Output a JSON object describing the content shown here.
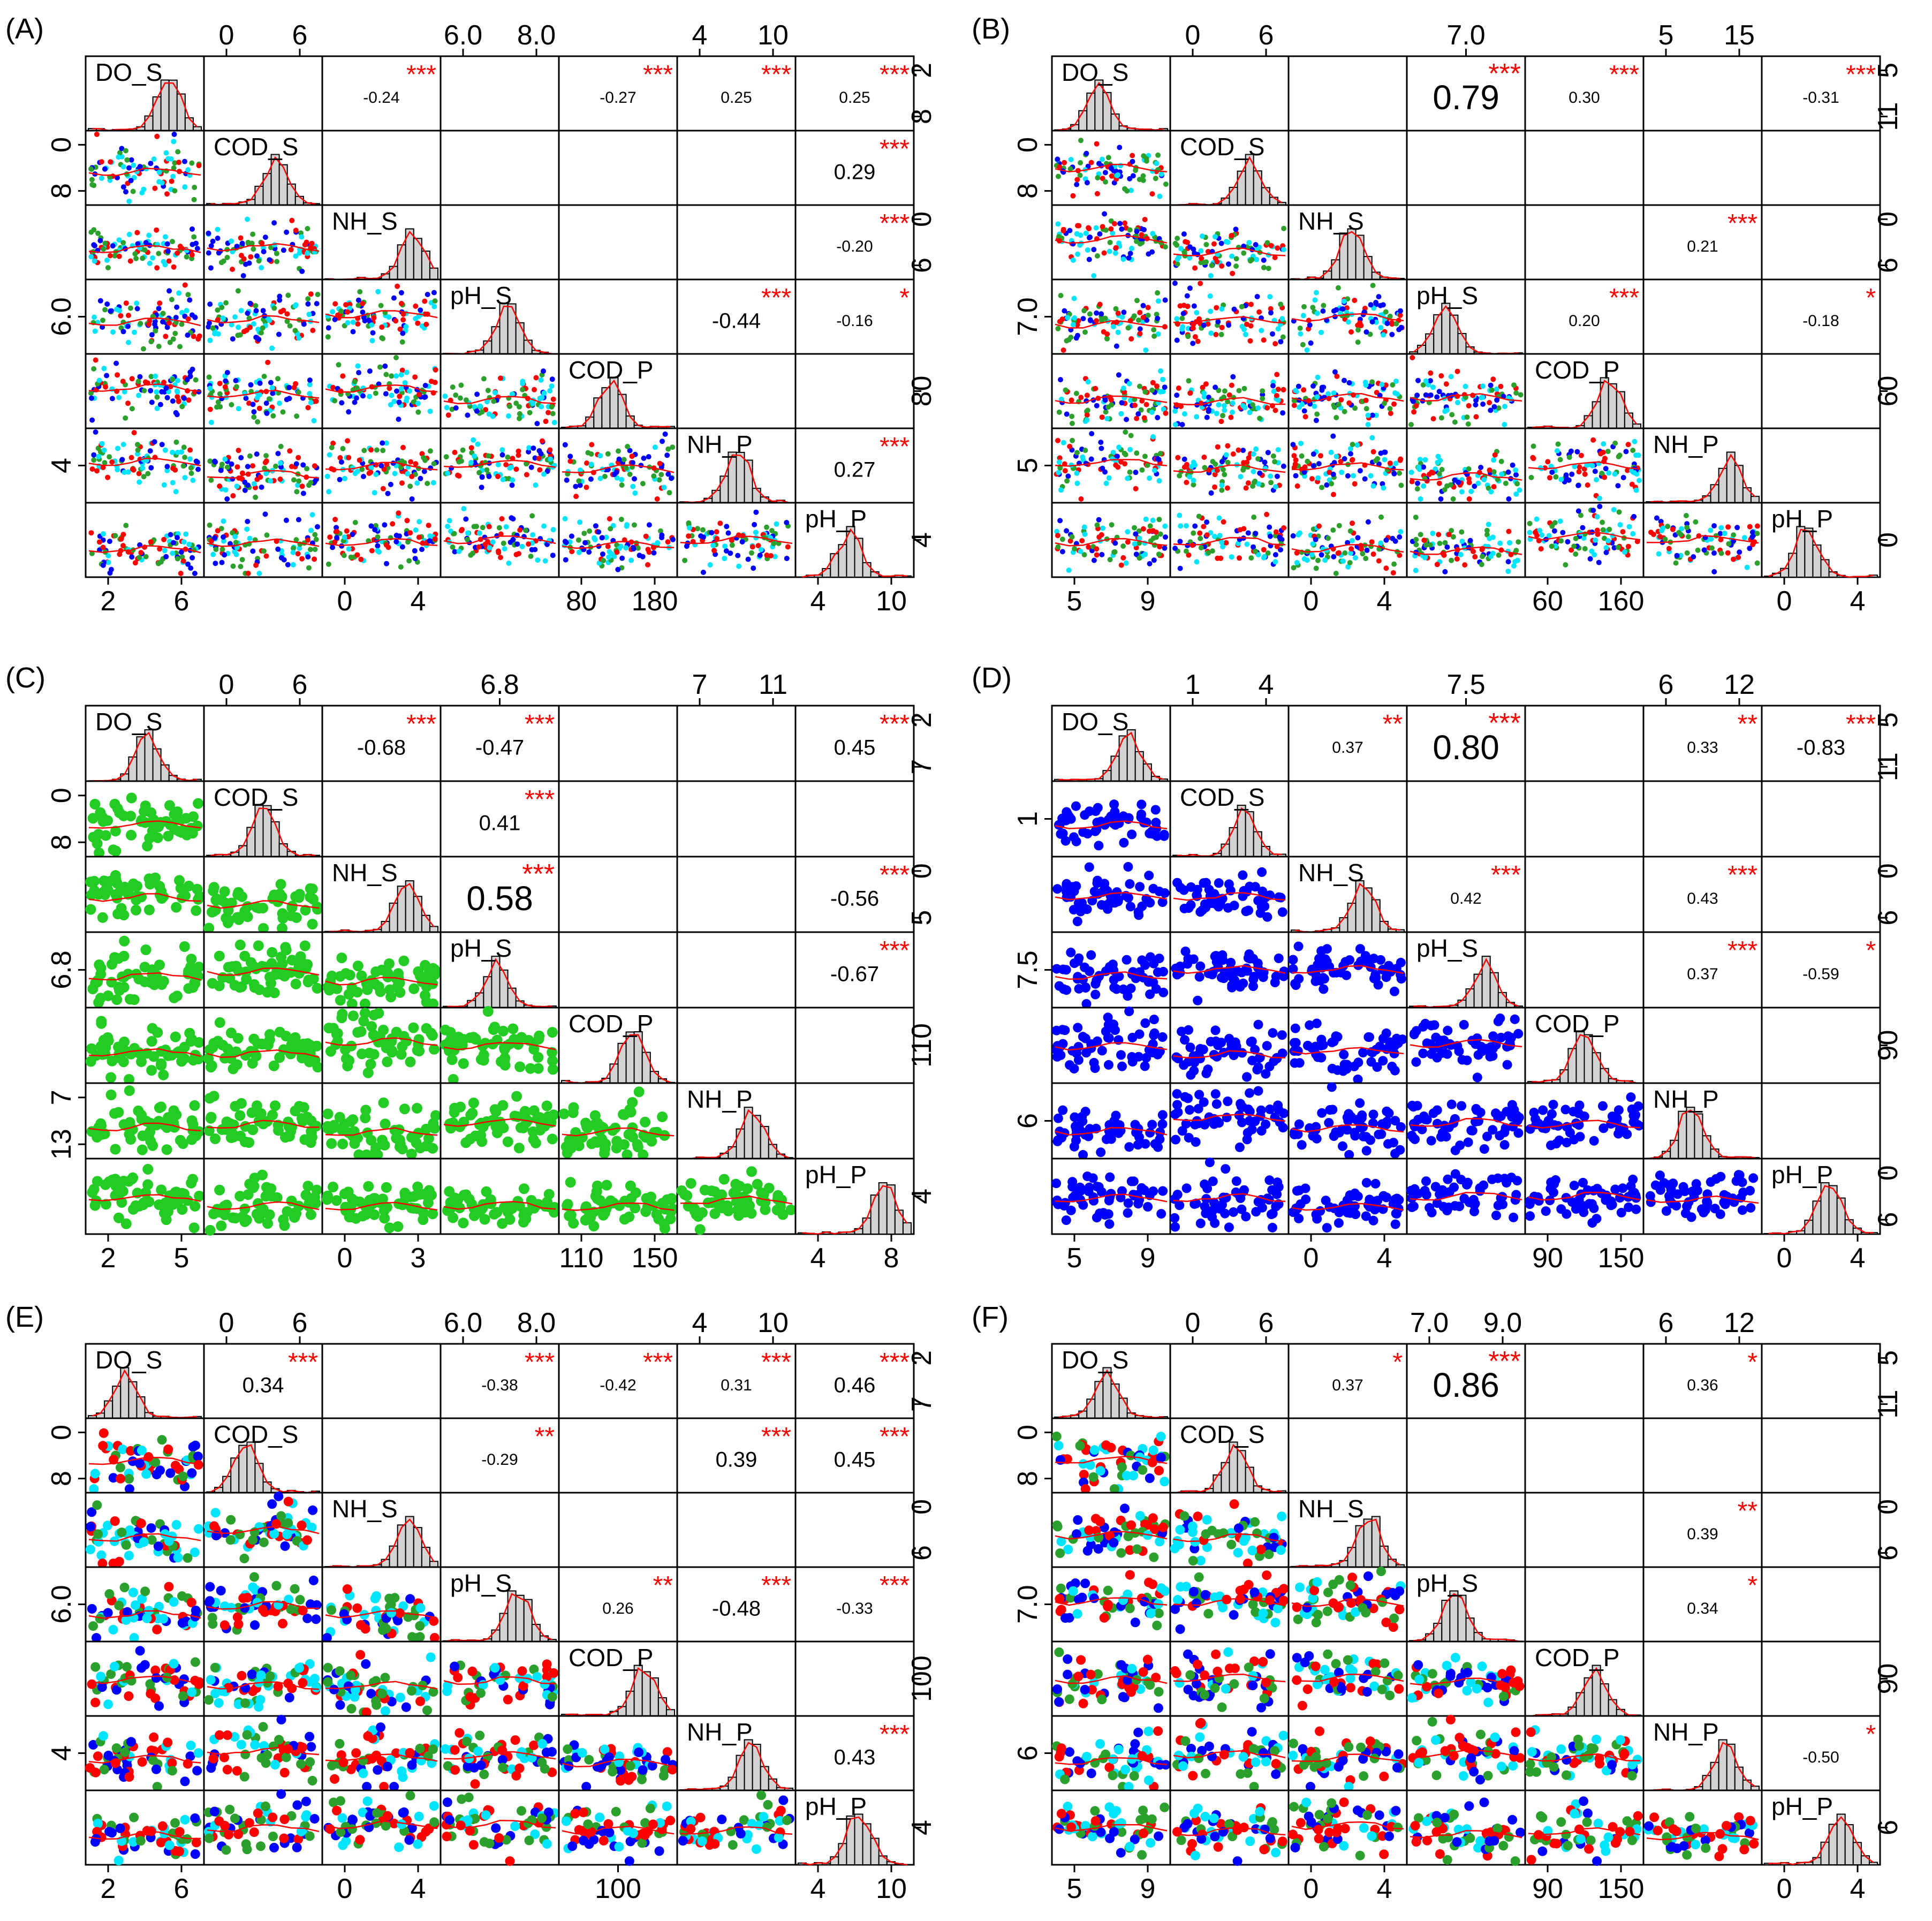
{
  "chart_data": [
    {
      "type": "scatter-matrix",
      "panel_label": "(A)",
      "variables": [
        "DO_S",
        "COD_S",
        "NH_S",
        "pH_S",
        "COD_P",
        "NH_P",
        "pH_P"
      ],
      "point_colors": [
        "#2ca02c",
        "#ff0000",
        "#0000ff",
        "#00e5ff"
      ],
      "top_ticks": [
        [],
        [
          "0",
          "6"
        ],
        [],
        [
          "6.0",
          "8.0"
        ],
        [],
        [
          "4",
          "10"
        ],
        []
      ],
      "bottom_ticks": [
        [
          "2",
          "6"
        ],
        [],
        [
          "0",
          "4"
        ],
        [],
        [
          "80",
          "180"
        ],
        [],
        [
          "4",
          "10"
        ]
      ],
      "left_ticks": [
        [],
        [
          "0",
          "8"
        ],
        [],
        [
          "6.0"
        ],
        [],
        [
          "4"
        ],
        []
      ],
      "right_ticks": [
        [
          "2",
          "8"
        ],
        [],
        [
          "0",
          "6"
        ],
        [],
        [
          "80"
        ],
        [],
        [
          "4"
        ]
      ],
      "correlations": [
        {
          "row": 0,
          "col": 2,
          "value": "-0.24",
          "stars": "***",
          "size": "small"
        },
        {
          "row": 0,
          "col": 4,
          "value": "-0.27",
          "stars": "***",
          "size": "small"
        },
        {
          "row": 0,
          "col": 5,
          "value": "0.25",
          "stars": "***",
          "size": "small"
        },
        {
          "row": 0,
          "col": 6,
          "value": "0.25",
          "stars": "***",
          "size": "small"
        },
        {
          "row": 1,
          "col": 6,
          "value": "0.29",
          "stars": "***",
          "size": "medium"
        },
        {
          "row": 2,
          "col": 6,
          "value": "-0.20",
          "stars": "***",
          "size": "small"
        },
        {
          "row": 3,
          "col": 5,
          "value": "-0.44",
          "stars": "***",
          "size": "medium"
        },
        {
          "row": 3,
          "col": 6,
          "value": "-0.16",
          "stars": "*",
          "size": "small"
        },
        {
          "row": 5,
          "col": 6,
          "value": "0.27",
          "stars": "***",
          "size": "medium"
        }
      ]
    },
    {
      "type": "scatter-matrix",
      "panel_label": "(B)",
      "variables": [
        "DO_S",
        "COD_S",
        "NH_S",
        "pH_S",
        "COD_P",
        "NH_P",
        "pH_P"
      ],
      "point_colors": [
        "#2ca02c",
        "#ff0000",
        "#0000ff",
        "#00e5ff"
      ],
      "top_ticks": [
        [],
        [
          "0",
          "6"
        ],
        [],
        [
          "7.0"
        ],
        [],
        [
          "5",
          "15"
        ],
        []
      ],
      "bottom_ticks": [
        [
          "5",
          "9"
        ],
        [],
        [
          "0",
          "4"
        ],
        [],
        [
          "60",
          "160"
        ],
        [],
        [
          "0",
          "4"
        ]
      ],
      "left_ticks": [
        [],
        [
          "0",
          "8"
        ],
        [],
        [
          "7.0"
        ],
        [],
        [
          "5"
        ],
        []
      ],
      "right_ticks": [
        [
          "5",
          "11"
        ],
        [],
        [
          "0",
          "6"
        ],
        [],
        [
          "60"
        ],
        [],
        [
          "0"
        ]
      ],
      "correlations": [
        {
          "row": 0,
          "col": 3,
          "value": "0.79",
          "stars": "***",
          "size": "large"
        },
        {
          "row": 0,
          "col": 4,
          "value": "0.30",
          "stars": "***",
          "size": "small"
        },
        {
          "row": 0,
          "col": 6,
          "value": "-0.31",
          "stars": "***",
          "size": "small"
        },
        {
          "row": 2,
          "col": 5,
          "value": "0.21",
          "stars": "***",
          "size": "small"
        },
        {
          "row": 3,
          "col": 4,
          "value": "0.20",
          "stars": "***",
          "size": "small"
        },
        {
          "row": 3,
          "col": 6,
          "value": "-0.18",
          "stars": "*",
          "size": "small"
        }
      ]
    },
    {
      "type": "scatter-matrix",
      "panel_label": "(C)",
      "variables": [
        "DO_S",
        "COD_S",
        "NH_S",
        "pH_S",
        "COD_P",
        "NH_P",
        "pH_P"
      ],
      "point_colors": [
        "#22cc22"
      ],
      "top_ticks": [
        [],
        [
          "0",
          "6"
        ],
        [],
        [
          "6.8"
        ],
        [],
        [
          "7",
          "11"
        ],
        []
      ],
      "bottom_ticks": [
        [
          "2",
          "5"
        ],
        [],
        [
          "0",
          "3"
        ],
        [],
        [
          "110",
          "150"
        ],
        [],
        [
          "4",
          "8"
        ]
      ],
      "left_ticks": [
        [],
        [
          "0",
          "8"
        ],
        [],
        [
          "6.8"
        ],
        [],
        [
          "7",
          "13"
        ],
        []
      ],
      "right_ticks": [
        [
          "2",
          "7"
        ],
        [],
        [
          "0",
          "5"
        ],
        [],
        [
          "110"
        ],
        [],
        [
          "4"
        ]
      ],
      "correlations": [
        {
          "row": 0,
          "col": 2,
          "value": "-0.68",
          "stars": "***",
          "size": "medium"
        },
        {
          "row": 0,
          "col": 3,
          "value": "-0.47",
          "stars": "***",
          "size": "medium"
        },
        {
          "row": 0,
          "col": 6,
          "value": "0.45",
          "stars": "***",
          "size": "medium"
        },
        {
          "row": 1,
          "col": 3,
          "value": "0.41",
          "stars": "***",
          "size": "medium"
        },
        {
          "row": 2,
          "col": 3,
          "value": "0.58",
          "stars": "***",
          "size": "large"
        },
        {
          "row": 2,
          "col": 6,
          "value": "-0.56",
          "stars": "***",
          "size": "medium"
        },
        {
          "row": 3,
          "col": 6,
          "value": "-0.67",
          "stars": "***",
          "size": "medium"
        }
      ]
    },
    {
      "type": "scatter-matrix",
      "panel_label": "(D)",
      "variables": [
        "DO_S",
        "COD_S",
        "NH_S",
        "pH_S",
        "COD_P",
        "NH_P",
        "pH_P"
      ],
      "point_colors": [
        "#0000ff"
      ],
      "top_ticks": [
        [],
        [
          "1",
          "4"
        ],
        [],
        [
          "7.5"
        ],
        [],
        [
          "6",
          "12"
        ],
        []
      ],
      "bottom_ticks": [
        [
          "5",
          "9"
        ],
        [],
        [
          "0",
          "4"
        ],
        [],
        [
          "90",
          "150"
        ],
        [],
        [
          "0",
          "4"
        ]
      ],
      "left_ticks": [
        [],
        [
          "1"
        ],
        [],
        [
          "7.5"
        ],
        [],
        [
          "6"
        ],
        []
      ],
      "right_ticks": [
        [
          "5",
          "11"
        ],
        [],
        [
          "0",
          "6"
        ],
        [],
        [
          "90"
        ],
        [],
        [
          "0",
          "6"
        ]
      ],
      "correlations": [
        {
          "row": 0,
          "col": 2,
          "value": "0.37",
          "stars": "**",
          "size": "small"
        },
        {
          "row": 0,
          "col": 3,
          "value": "0.80",
          "stars": "***",
          "size": "large"
        },
        {
          "row": 0,
          "col": 5,
          "value": "0.33",
          "stars": "**",
          "size": "small"
        },
        {
          "row": 0,
          "col": 6,
          "value": "-0.83",
          "stars": "***",
          "size": "medium"
        },
        {
          "row": 2,
          "col": 3,
          "value": "0.42",
          "stars": "***",
          "size": "small"
        },
        {
          "row": 2,
          "col": 5,
          "value": "0.43",
          "stars": "***",
          "size": "small"
        },
        {
          "row": 3,
          "col": 5,
          "value": "0.37",
          "stars": "***",
          "size": "small"
        },
        {
          "row": 3,
          "col": 6,
          "value": "-0.59",
          "stars": "*",
          "size": "small"
        }
      ]
    },
    {
      "type": "scatter-matrix",
      "panel_label": "(E)",
      "variables": [
        "DO_S",
        "COD_S",
        "NH_S",
        "pH_S",
        "COD_P",
        "NH_P",
        "pH_P"
      ],
      "point_colors": [
        "#2ca02c",
        "#ff0000",
        "#0000ff",
        "#00e5ff"
      ],
      "top_ticks": [
        [],
        [
          "0",
          "6"
        ],
        [],
        [
          "6.0",
          "8.0"
        ],
        [],
        [
          "4",
          "10"
        ],
        []
      ],
      "bottom_ticks": [
        [
          "2",
          "6"
        ],
        [],
        [
          "0",
          "4"
        ],
        [],
        [
          "100"
        ],
        [],
        [
          "4",
          "10"
        ]
      ],
      "left_ticks": [
        [],
        [
          "0",
          "8"
        ],
        [],
        [
          "6.0"
        ],
        [],
        [
          "4"
        ],
        []
      ],
      "right_ticks": [
        [
          "2",
          "7"
        ],
        [],
        [
          "0",
          "6"
        ],
        [],
        [
          "100"
        ],
        [],
        [
          "4"
        ]
      ],
      "correlations": [
        {
          "row": 0,
          "col": 1,
          "value": "0.34",
          "stars": "***",
          "size": "medium"
        },
        {
          "row": 0,
          "col": 3,
          "value": "-0.38",
          "stars": "***",
          "size": "small"
        },
        {
          "row": 0,
          "col": 4,
          "value": "-0.42",
          "stars": "***",
          "size": "small"
        },
        {
          "row": 0,
          "col": 5,
          "value": "0.31",
          "stars": "***",
          "size": "small"
        },
        {
          "row": 0,
          "col": 6,
          "value": "0.46",
          "stars": "***",
          "size": "medium"
        },
        {
          "row": 1,
          "col": 3,
          "value": "-0.29",
          "stars": "**",
          "size": "small"
        },
        {
          "row": 1,
          "col": 5,
          "value": "0.39",
          "stars": "***",
          "size": "medium"
        },
        {
          "row": 1,
          "col": 6,
          "value": "0.45",
          "stars": "***",
          "size": "medium"
        },
        {
          "row": 3,
          "col": 4,
          "value": "0.26",
          "stars": "**",
          "size": "small"
        },
        {
          "row": 3,
          "col": 5,
          "value": "-0.48",
          "stars": "***",
          "size": "medium"
        },
        {
          "row": 3,
          "col": 6,
          "value": "-0.33",
          "stars": "***",
          "size": "small"
        },
        {
          "row": 5,
          "col": 6,
          "value": "0.43",
          "stars": "***",
          "size": "medium"
        }
      ]
    },
    {
      "type": "scatter-matrix",
      "panel_label": "(F)",
      "variables": [
        "DO_S",
        "COD_S",
        "NH_S",
        "pH_S",
        "COD_P",
        "NH_P",
        "pH_P"
      ],
      "point_colors": [
        "#2ca02c",
        "#ff0000",
        "#0000ff",
        "#00e5ff"
      ],
      "top_ticks": [
        [],
        [
          "0",
          "6"
        ],
        [],
        [
          "7.0",
          "9.0"
        ],
        [],
        [
          "6",
          "12"
        ],
        []
      ],
      "bottom_ticks": [
        [
          "5",
          "9"
        ],
        [],
        [
          "0",
          "4"
        ],
        [],
        [
          "90",
          "150"
        ],
        [],
        [
          "0",
          "4"
        ]
      ],
      "left_ticks": [
        [],
        [
          "0",
          "8"
        ],
        [],
        [
          "7.0"
        ],
        [],
        [
          "6"
        ],
        []
      ],
      "right_ticks": [
        [
          "5",
          "11"
        ],
        [],
        [
          "0",
          "6"
        ],
        [],
        [
          "90"
        ],
        [],
        [
          "6"
        ]
      ],
      "correlations": [
        {
          "row": 0,
          "col": 2,
          "value": "0.37",
          "stars": "*",
          "size": "small"
        },
        {
          "row": 0,
          "col": 3,
          "value": "0.86",
          "stars": "***",
          "size": "large"
        },
        {
          "row": 0,
          "col": 5,
          "value": "0.36",
          "stars": "*",
          "size": "small"
        },
        {
          "row": 2,
          "col": 5,
          "value": "0.39",
          "stars": "**",
          "size": "small"
        },
        {
          "row": 3,
          "col": 5,
          "value": "0.34",
          "stars": "*",
          "size": "small"
        },
        {
          "row": 5,
          "col": 6,
          "value": "-0.50",
          "stars": "*",
          "size": "small"
        }
      ]
    }
  ]
}
